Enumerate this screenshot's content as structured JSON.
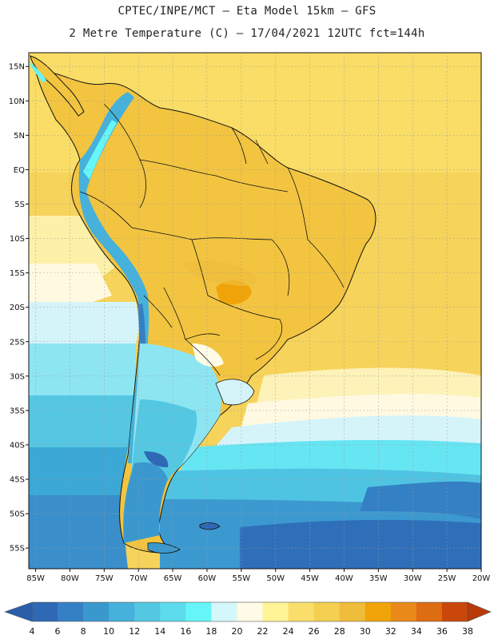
{
  "header": {
    "line1": "CPTEC/INPE/MCT –  Eta Model 15km – GFS",
    "line2": "2 Metre Temperature (C) – 17/04/2021 12UTC fct=144h"
  },
  "map": {
    "lon_range": [
      -86,
      -20
    ],
    "lat_range": [
      -58,
      17
    ],
    "lat_ticks": [
      {
        "v": 15,
        "label": "15N"
      },
      {
        "v": 10,
        "label": "10N"
      },
      {
        "v": 5,
        "label": "5N"
      },
      {
        "v": 0,
        "label": "EQ"
      },
      {
        "v": -5,
        "label": "5S"
      },
      {
        "v": -10,
        "label": "10S"
      },
      {
        "v": -15,
        "label": "15S"
      },
      {
        "v": -20,
        "label": "20S"
      },
      {
        "v": -25,
        "label": "25S"
      },
      {
        "v": -30,
        "label": "30S"
      },
      {
        "v": -35,
        "label": "35S"
      },
      {
        "v": -40,
        "label": "40S"
      },
      {
        "v": -45,
        "label": "45S"
      },
      {
        "v": -50,
        "label": "50S"
      },
      {
        "v": -55,
        "label": "55S"
      }
    ],
    "lon_ticks": [
      {
        "v": -85,
        "label": "85W"
      },
      {
        "v": -80,
        "label": "80W"
      },
      {
        "v": -75,
        "label": "75W"
      },
      {
        "v": -70,
        "label": "70W"
      },
      {
        "v": -65,
        "label": "65W"
      },
      {
        "v": -60,
        "label": "60W"
      },
      {
        "v": -55,
        "label": "55W"
      },
      {
        "v": -50,
        "label": "50W"
      },
      {
        "v": -45,
        "label": "45W"
      },
      {
        "v": -40,
        "label": "40W"
      },
      {
        "v": -35,
        "label": "35W"
      },
      {
        "v": -30,
        "label": "30W"
      },
      {
        "v": -25,
        "label": "25W"
      },
      {
        "v": -20,
        "label": "20W"
      }
    ]
  },
  "colorbar": {
    "labels": [
      "4",
      "6",
      "8",
      "10",
      "12",
      "14",
      "16",
      "18",
      "20",
      "22",
      "24",
      "26",
      "28",
      "30",
      "32",
      "34",
      "36",
      "38"
    ],
    "colors": [
      "#2f68b5",
      "#3580c4",
      "#3a98cf",
      "#46b1da",
      "#54c8e3",
      "#5cdced",
      "#66f5f8",
      "#d4f7fb",
      "#fffbe6",
      "#fff496",
      "#f9de6c",
      "#f4cf51",
      "#efbd3b",
      "#f0a40a",
      "#e9891a",
      "#de6c12",
      "#c9470a"
    ],
    "left_arrow_color": "#2b5ea8",
    "right_arrow_color": "#b83a08"
  }
}
